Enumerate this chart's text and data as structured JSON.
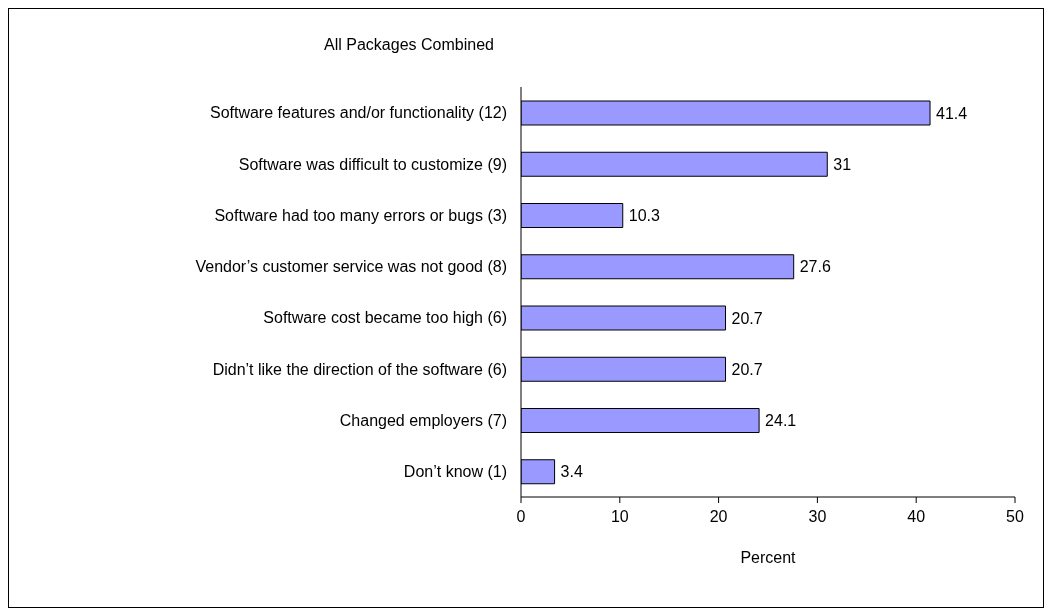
{
  "chart_data": {
    "type": "bar",
    "orientation": "horizontal",
    "title": "All Packages Combined",
    "xlabel": "Percent",
    "categories": [
      "Software features and/or functionality  (12)",
      "Software was difficult to customize  (9)",
      "Software had too many errors or bugs  (3)",
      "Vendor’s customer service was not good  (8)",
      "Software cost became too high  (6)",
      "Didn’t like the direction of the software  (6)",
      "Changed employers  (7)",
      "Don’t know  (1)"
    ],
    "values": [
      41.4,
      31,
      10.3,
      27.6,
      20.7,
      20.7,
      24.1,
      3.4
    ],
    "color": "#9999ff",
    "xlim": [
      0,
      50
    ],
    "xticks": [
      0,
      10,
      20,
      30,
      40,
      50
    ],
    "grid": false,
    "data_labels": true
  }
}
